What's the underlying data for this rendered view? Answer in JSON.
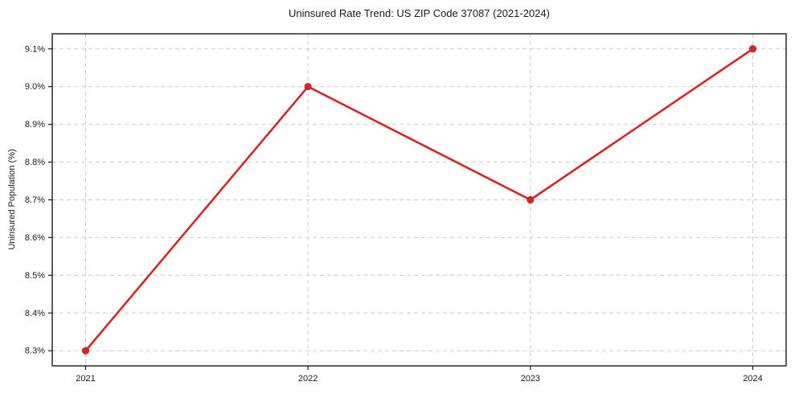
{
  "chart_data": {
    "type": "line",
    "title": "Uninsured Rate Trend: US ZIP Code 37087 (2021-2024)",
    "xlabel": "",
    "ylabel": "Uninsured Population (%)",
    "x": [
      2021,
      2022,
      2023,
      2024
    ],
    "xtick_labels": [
      "2021",
      "2022",
      "2023",
      "2024"
    ],
    "series": [
      {
        "name": "Uninsured Population (%)",
        "values": [
          8.3,
          9.0,
          8.7,
          9.1
        ],
        "color": "#d62728",
        "marker": "circle"
      }
    ],
    "yticks": [
      8.3,
      8.4,
      8.5,
      8.6,
      8.7,
      8.8,
      8.9,
      9.0,
      9.1
    ],
    "ytick_labels": [
      "8.3%",
      "8.4%",
      "8.5%",
      "8.6%",
      "8.7%",
      "8.8%",
      "8.9%",
      "9.0%",
      "9.1%"
    ],
    "xlim": [
      2020.85,
      2024.15
    ],
    "ylim": [
      8.26,
      9.14
    ],
    "grid": true,
    "grid_style": "dashed",
    "grid_color": "#cccccc",
    "axis_color": "#1a1a1a",
    "background": "#ffffff",
    "legend": "none"
  }
}
